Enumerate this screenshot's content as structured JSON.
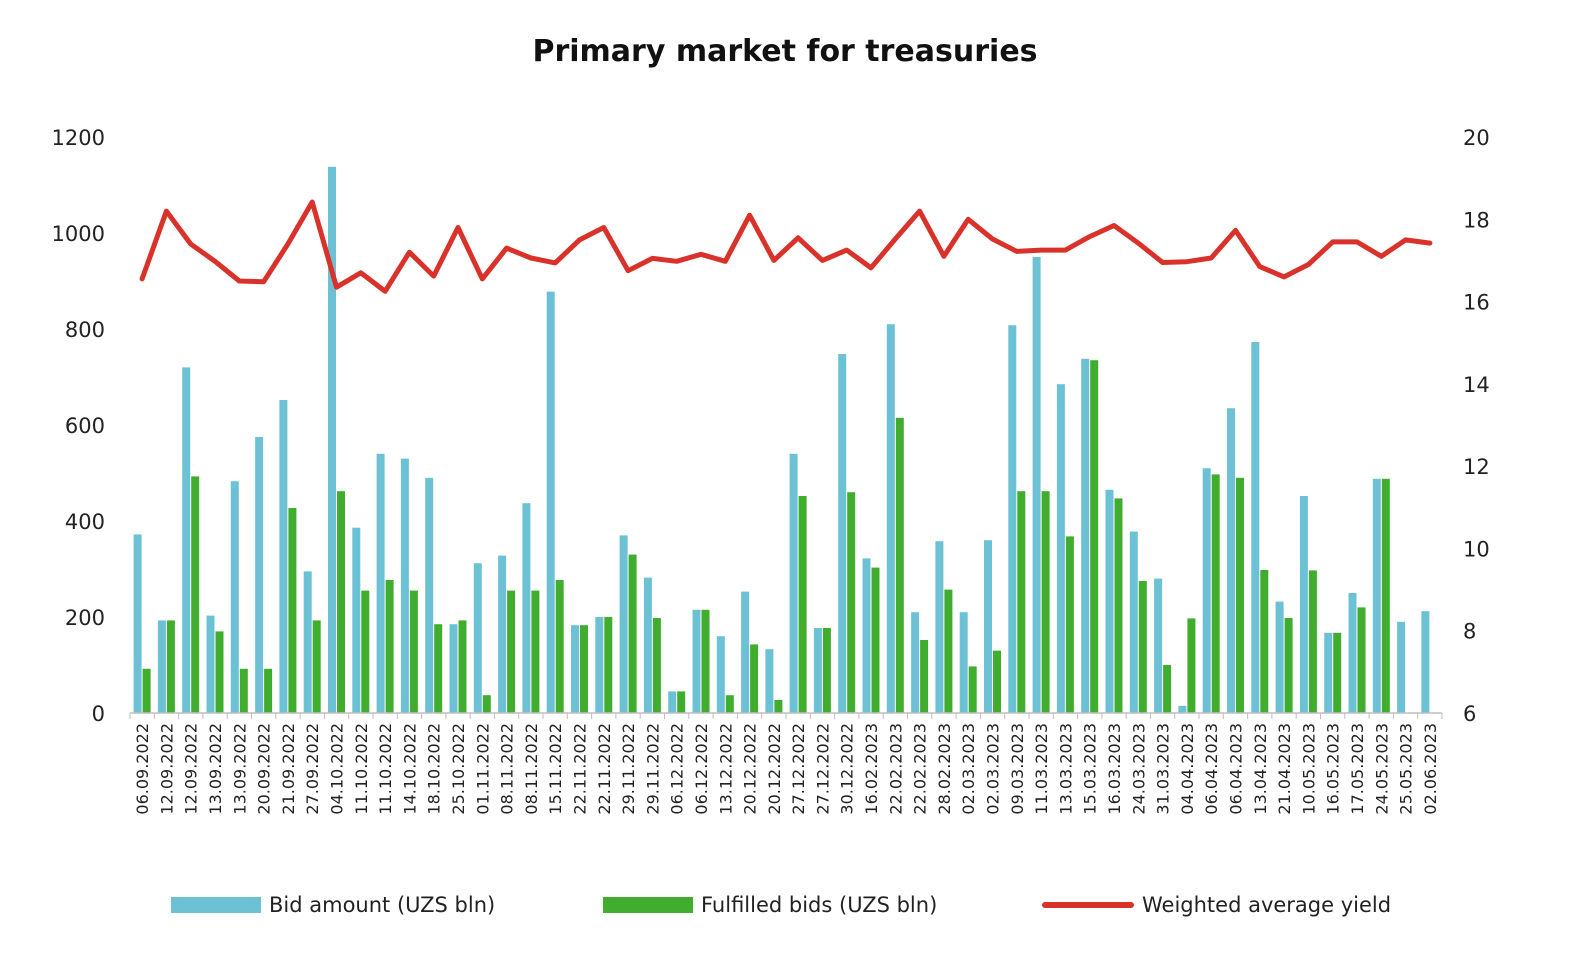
{
  "colors": {
    "bid": "#6cc2d4",
    "fulfilled": "#41ad2e",
    "yield": "#d9322a"
  },
  "chart_data": {
    "type": "bar",
    "title": "Primary market for treasuries",
    "ylim": [
      0,
      1200
    ],
    "y2lim": [
      6,
      20
    ],
    "yticks": [
      "0",
      "200",
      "400",
      "600",
      "800",
      "1000",
      "1200"
    ],
    "y2ticks": [
      "6",
      "8",
      "10",
      "12",
      "14",
      "16",
      "18",
      "20"
    ],
    "legend_position": "bottom",
    "grid": false,
    "categories": [
      "06.09.2022",
      "12.09.2022",
      "12.09.2022",
      "13.09.2022",
      "13.09.2022",
      "20.09.2022",
      "21.09.2022",
      "27.09.2022",
      "04.10.2022",
      "11.10.2022",
      "11.10.2022",
      "14.10.2022",
      "18.10.2022",
      "25.10.2022",
      "01.11.2022",
      "08.11.2022",
      "08.11.2022",
      "15.11.2022",
      "22.11.2022",
      "22.11.2022",
      "29.11.2022",
      "29.11.2022",
      "06.12.2022",
      "06.12.2022",
      "13.12.2022",
      "20.12.2022",
      "20.12.2022",
      "27.12.2022",
      "27.12.2022",
      "30.12.2022",
      "16.02.2023",
      "22.02.2023",
      "22.02.2023",
      "28.02.2023",
      "02.03.2023",
      "02.03.2023",
      "09.03.2023",
      "11.03.2023",
      "13.03.2023",
      "15.03.2023",
      "16.03.2023",
      "24.03.2023",
      "31.03.2023",
      "04.04.2023",
      "06.04.2023",
      "06.04.2023",
      "13.04.2023",
      "21.04.2023",
      "10.05.2023",
      "16.05.2023",
      "17.05.2023",
      "24.05.2023",
      "25.05.2023",
      "02.06.2023"
    ],
    "series": [
      {
        "name": "Bid amount (UZS bln)",
        "type": "bar",
        "axis": "left",
        "values": [
          372,
          193,
          720,
          203,
          483,
          575,
          652,
          295,
          1138,
          386,
          540,
          530,
          490,
          185,
          312,
          328,
          437,
          878,
          183,
          200,
          370,
          282,
          45,
          215,
          160,
          253,
          133,
          540,
          177,
          748,
          322,
          810,
          210,
          358,
          210,
          360,
          808,
          950,
          685,
          738,
          465,
          378,
          280,
          15,
          510,
          635,
          773,
          232,
          452,
          167,
          250,
          488,
          190,
          212
        ]
      },
      {
        "name": "Fulfilled bids (UZS bln)",
        "type": "bar",
        "axis": "left",
        "values": [
          92,
          193,
          493,
          170,
          92,
          92,
          427,
          193,
          462,
          255,
          277,
          255,
          185,
          193,
          37,
          255,
          255,
          277,
          183,
          200,
          330,
          198,
          45,
          215,
          37,
          143,
          27,
          452,
          177,
          460,
          303,
          615,
          152,
          257,
          97,
          130,
          462,
          462,
          368,
          735,
          447,
          275,
          100,
          197,
          497,
          490,
          298,
          198,
          297,
          167,
          220,
          488,
          0,
          0
        ]
      },
      {
        "name": "Weighted average yield",
        "type": "line",
        "axis": "right",
        "values": [
          16.55,
          18.2,
          17.4,
          16.98,
          16.5,
          16.48,
          17.4,
          18.42,
          16.35,
          16.7,
          16.25,
          17.2,
          16.62,
          17.8,
          16.55,
          17.3,
          17.06,
          16.94,
          17.5,
          17.8,
          16.75,
          17.05,
          16.98,
          17.15,
          16.98,
          18.1,
          17.0,
          17.55,
          17.0,
          17.25,
          16.82,
          17.52,
          18.2,
          17.1,
          18.0,
          17.52,
          17.22,
          17.25,
          17.25,
          17.58,
          17.85,
          17.42,
          16.95,
          16.97,
          17.06,
          17.73,
          16.85,
          16.6,
          16.9,
          17.45,
          17.45,
          17.1,
          17.5,
          17.42
        ]
      }
    ]
  }
}
